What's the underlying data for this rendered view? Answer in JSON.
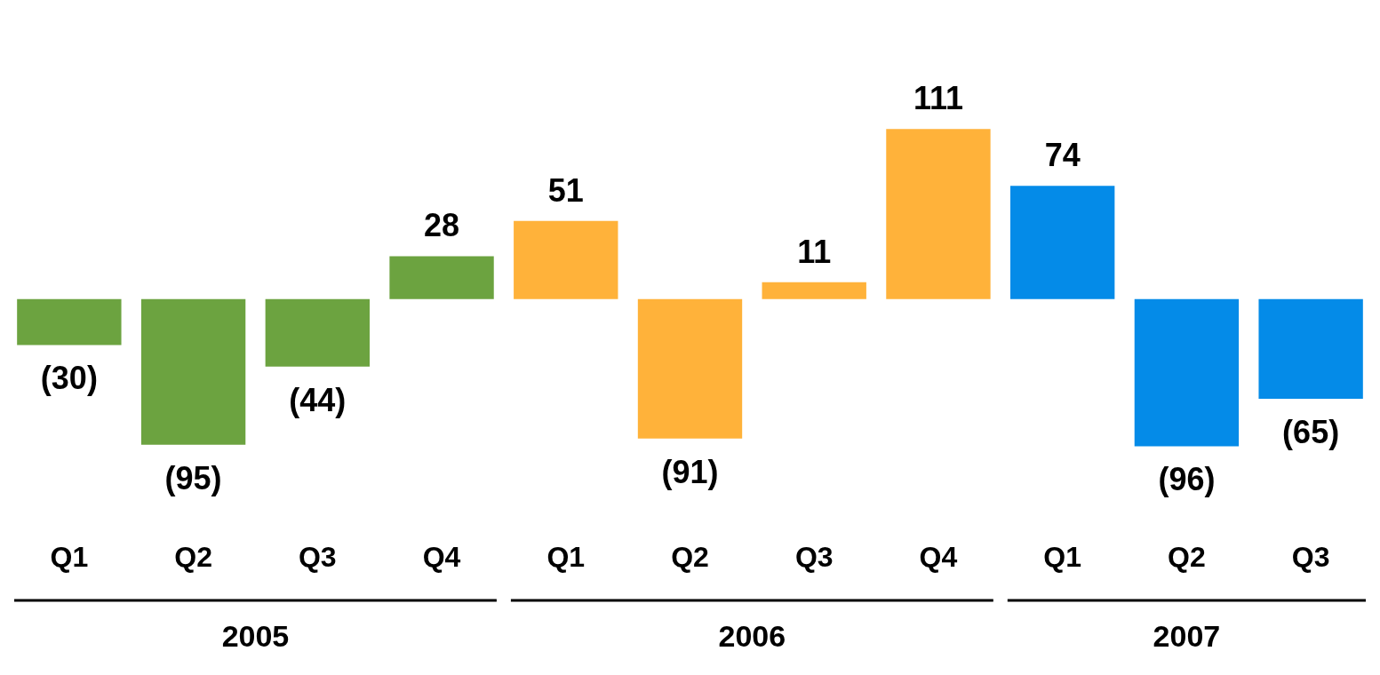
{
  "chart_data": {
    "type": "bar",
    "categories": [
      "Q1",
      "Q2",
      "Q3",
      "Q4",
      "Q1",
      "Q2",
      "Q3",
      "Q4",
      "Q1",
      "Q2",
      "Q3"
    ],
    "values": [
      -30,
      -95,
      -44,
      28,
      51,
      -91,
      11,
      111,
      74,
      -96,
      -65
    ],
    "colors": [
      "#6ca340",
      "#6ca340",
      "#6ca340",
      "#6ca340",
      "#ffb23a",
      "#ffb23a",
      "#ffb23a",
      "#ffb23a",
      "#048be8",
      "#048be8",
      "#048be8"
    ],
    "value_labels": [
      "(30)",
      "(95)",
      "(44)",
      "28",
      "51",
      "(91)",
      "11",
      "111",
      "74",
      "(96)",
      "(65)"
    ],
    "annotations": [
      "2005",
      "2006",
      "2007"
    ],
    "legend": false,
    "grid": false
  }
}
